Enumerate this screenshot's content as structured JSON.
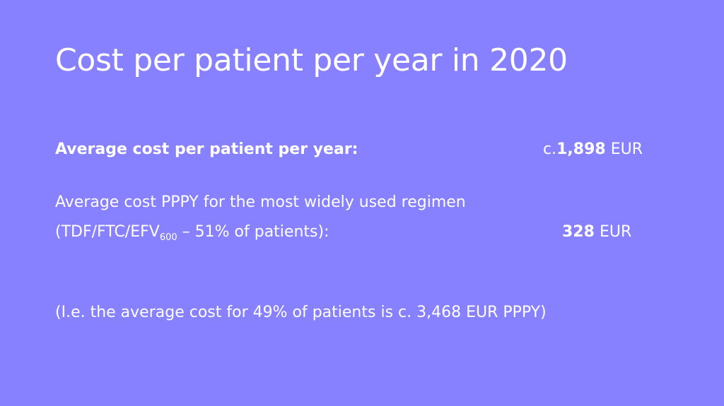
{
  "title": "Cost per patient per year in 2020",
  "average": {
    "label": "Average cost per patient per year:",
    "prefix": "c.",
    "value": "1,898",
    "unit": "EUR"
  },
  "regimen": {
    "line1": "Average cost PPPY for the most widely used regimen",
    "line2_pre": "(TDF/FTC/EFV",
    "line2_sub": "600",
    "line2_post": " – 51% of patients):",
    "value": "328",
    "unit": "EUR"
  },
  "note": "(I.e. the average cost for 49% of patients is c. 3,468 EUR PPPY)"
}
